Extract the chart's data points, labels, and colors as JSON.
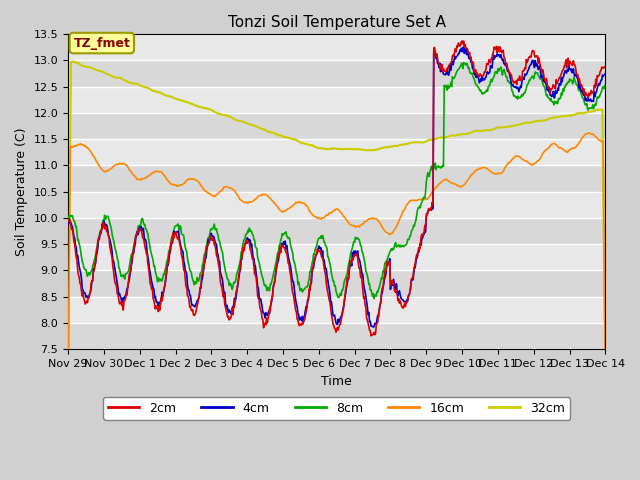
{
  "title": "Tonzi Soil Temperature Set A",
  "xlabel": "Time",
  "ylabel": "Soil Temperature (C)",
  "ylim": [
    7.5,
    13.5
  ],
  "fig_facecolor": "#d0d0d0",
  "ax_facecolor": "#e8e8e8",
  "annotation_text": "TZ_fmet",
  "annotation_bg": "#ffff99",
  "annotation_text_color": "#8b0000",
  "annotation_border_color": "#999900",
  "series": {
    "2cm": {
      "color": "#dd0000",
      "lw": 1.2
    },
    "4cm": {
      "color": "#0000cc",
      "lw": 1.2
    },
    "8cm": {
      "color": "#00aa00",
      "lw": 1.2
    },
    "16cm": {
      "color": "#ff8800",
      "lw": 1.2
    },
    "32cm": {
      "color": "#cccc00",
      "lw": 1.5
    }
  },
  "x_tick_labels": [
    "Nov 29",
    "Nov 30",
    "Dec 1",
    "Dec 2",
    "Dec 3",
    "Dec 4",
    "Dec 5",
    "Dec 6",
    "Dec 7",
    "Dec 8",
    "Dec 9",
    "Dec 10",
    "Dec 11",
    "Dec 12",
    "Dec 13",
    "Dec 14"
  ],
  "yticks": [
    7.5,
    8.0,
    8.5,
    9.0,
    9.5,
    10.0,
    10.5,
    11.0,
    11.5,
    12.0,
    12.5,
    13.0,
    13.5
  ],
  "grid_color": "white",
  "grid_lw": 1.0
}
